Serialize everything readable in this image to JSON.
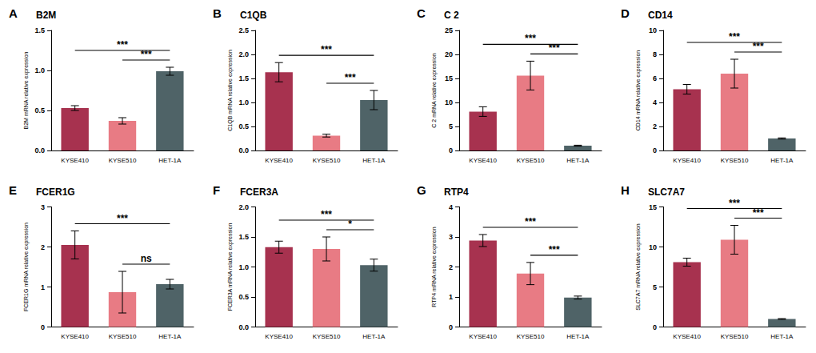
{
  "chart_data": [
    {
      "type": "bar",
      "panel": "A",
      "title": "B2M",
      "y_label": "B2M mRNA relative expression",
      "categories": [
        "KYSE410",
        "KYSE510",
        "HET-1A"
      ],
      "values": [
        0.53,
        0.37,
        0.99
      ],
      "errors": [
        0.03,
        0.04,
        0.05
      ],
      "colors": [
        "#a7324f",
        "#e87b84",
        "#4f6367"
      ],
      "ylim": [
        0,
        1.5
      ],
      "yticks": [
        {
          "value": 0,
          "label": "0.0"
        },
        0.5,
        {
          "value": 1,
          "label": "1.0"
        },
        1.5
      ],
      "comparisons": [
        {
          "from": "KYSE410",
          "to": "HET-1A",
          "label": "***"
        },
        {
          "from": "KYSE510",
          "to": "HET-1A",
          "label": "***"
        }
      ]
    },
    {
      "type": "bar",
      "panel": "B",
      "title": "C1QB",
      "y_label": "C1QB mRNA relative expression",
      "categories": [
        "KYSE410",
        "KYSE510",
        "HET-1A"
      ],
      "values": [
        1.63,
        0.31,
        1.05
      ],
      "errors": [
        0.2,
        0.03,
        0.2
      ],
      "colors": [
        "#a7324f",
        "#e87b84",
        "#4f6367"
      ],
      "ylim": [
        0,
        2.5
      ],
      "yticks": [
        {
          "value": 0,
          "label": "0.0"
        },
        0.5,
        {
          "value": 1,
          "label": "1.0"
        },
        1.5,
        {
          "value": 2,
          "label": "2.0"
        },
        2.5
      ],
      "comparisons": [
        {
          "from": "KYSE410",
          "to": "HET-1A",
          "label": "***"
        },
        {
          "from": "KYSE510",
          "to": "HET-1A",
          "label": "***"
        }
      ]
    },
    {
      "type": "bar",
      "panel": "C",
      "title": "C 2",
      "y_label": "C 2 mRNA relative expression",
      "categories": [
        "KYSE410",
        "KYSE510",
        "HET-1A"
      ],
      "values": [
        8.1,
        15.6,
        1.0
      ],
      "errors": [
        1.0,
        3.0,
        0.1
      ],
      "colors": [
        "#a7324f",
        "#e87b84",
        "#4f6367"
      ],
      "ylim": [
        0,
        25
      ],
      "yticks": [
        0,
        5,
        10,
        15,
        20,
        25
      ],
      "comparisons": [
        {
          "from": "KYSE410",
          "to": "HET-1A",
          "label": "***"
        },
        {
          "from": "KYSE510",
          "to": "HET-1A",
          "label": "***"
        }
      ]
    },
    {
      "type": "bar",
      "panel": "D",
      "title": "CD14",
      "y_label": "CD14 mRNA relative expression",
      "categories": [
        "KYSE410",
        "KYSE510",
        "HET-1A"
      ],
      "values": [
        5.1,
        6.4,
        1.0
      ],
      "errors": [
        0.4,
        1.2,
        0.05
      ],
      "colors": [
        "#a7324f",
        "#e87b84",
        "#4f6367"
      ],
      "ylim": [
        0,
        10
      ],
      "yticks": [
        0,
        2,
        4,
        6,
        8,
        10
      ],
      "comparisons": [
        {
          "from": "KYSE410",
          "to": "HET-1A",
          "label": "***"
        },
        {
          "from": "KYSE510",
          "to": "HET-1A",
          "label": "***"
        }
      ]
    },
    {
      "type": "bar",
      "panel": "E",
      "title": "FCER1G",
      "y_label": "FCER1G mRNA relative expression",
      "categories": [
        "KYSE410",
        "KYSE510",
        "HET-1A"
      ],
      "values": [
        2.05,
        0.87,
        1.07
      ],
      "errors": [
        0.35,
        0.52,
        0.12
      ],
      "colors": [
        "#a7324f",
        "#e87b84",
        "#4f6367"
      ],
      "ylim": [
        0,
        3
      ],
      "yticks": [
        0,
        1,
        2,
        3
      ],
      "comparisons": [
        {
          "from": "KYSE410",
          "to": "HET-1A",
          "label": "***"
        },
        {
          "from": "KYSE510",
          "to": "HET-1A",
          "label": "ns"
        }
      ]
    },
    {
      "type": "bar",
      "panel": "F",
      "title": "FCER3A",
      "y_label": "FCER3A mRNA relative expression",
      "categories": [
        "KYSE410",
        "KYSE510",
        "HET-1A"
      ],
      "values": [
        1.33,
        1.3,
        1.03
      ],
      "errors": [
        0.1,
        0.2,
        0.1
      ],
      "colors": [
        "#a7324f",
        "#e87b84",
        "#4f6367"
      ],
      "ylim": [
        0,
        2
      ],
      "yticks": [
        {
          "value": 0,
          "label": "0.0"
        },
        0.5,
        {
          "value": 1,
          "label": "1.0"
        },
        1.5,
        {
          "value": 2,
          "label": "2.0"
        }
      ],
      "comparisons": [
        {
          "from": "KYSE410",
          "to": "HET-1A",
          "label": "***"
        },
        {
          "from": "KYSE510",
          "to": "HET-1A",
          "label": "*"
        }
      ]
    },
    {
      "type": "bar",
      "panel": "G",
      "title": "RTP4",
      "y_label": "RTP4 mRNA relative expression",
      "categories": [
        "KYSE410",
        "KYSE510",
        "HET-1A"
      ],
      "values": [
        2.88,
        1.78,
        0.98
      ],
      "errors": [
        0.2,
        0.37,
        0.05
      ],
      "colors": [
        "#a7324f",
        "#e87b84",
        "#4f6367"
      ],
      "ylim": [
        0,
        4
      ],
      "yticks": [
        0,
        1,
        2,
        3,
        4
      ],
      "comparisons": [
        {
          "from": "KYSE410",
          "to": "HET-1A",
          "label": "***"
        },
        {
          "from": "KYSE510",
          "to": "HET-1A",
          "label": "***"
        }
      ]
    },
    {
      "type": "bar",
      "panel": "H",
      "title": "SLC7A7",
      "y_label": "SLC7A7 mRNA relative expression",
      "categories": [
        "KYSE410",
        "KYSE510",
        "HET-1A"
      ],
      "values": [
        8.1,
        10.9,
        1.0
      ],
      "errors": [
        0.5,
        1.8,
        0.05
      ],
      "colors": [
        "#a7324f",
        "#e87b84",
        "#4f6367"
      ],
      "ylim": [
        0,
        15
      ],
      "yticks": [
        0,
        5,
        10,
        15
      ],
      "comparisons": [
        {
          "from": "KYSE410",
          "to": "HET-1A",
          "label": "***"
        },
        {
          "from": "KYSE510",
          "to": "HET-1A",
          "label": "***"
        }
      ]
    }
  ]
}
